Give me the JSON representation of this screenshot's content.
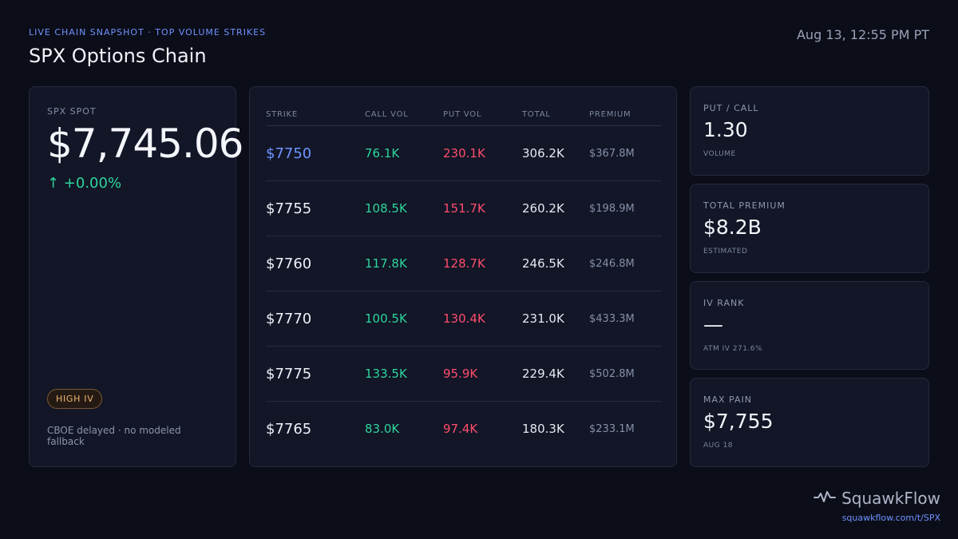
{
  "header": {
    "eyebrow": "LIVE CHAIN SNAPSHOT · TOP VOLUME STRIKES",
    "title": "SPX Options Chain",
    "timestamp": "Aug 13, 12:55 PM PT"
  },
  "spot": {
    "label": "SPX SPOT",
    "value": "$7,745.06",
    "change": "↑ +0.00%",
    "badge": "HIGH IV",
    "source_note": "CBOE delayed · no modeled fallback"
  },
  "chain": {
    "columns": {
      "strike": "STRIKE",
      "call_vol": "CALL VOL",
      "put_vol": "PUT VOL",
      "total": "TOTAL",
      "premium": "PREMIUM"
    },
    "rows": [
      {
        "strike": "$7750",
        "call_vol": "76.1K",
        "put_vol": "230.1K",
        "total": "306.2K",
        "premium": "$367.8M"
      },
      {
        "strike": "$7755",
        "call_vol": "108.5K",
        "put_vol": "151.7K",
        "total": "260.2K",
        "premium": "$198.9M"
      },
      {
        "strike": "$7760",
        "call_vol": "117.8K",
        "put_vol": "128.7K",
        "total": "246.5K",
        "premium": "$246.8M"
      },
      {
        "strike": "$7770",
        "call_vol": "100.5K",
        "put_vol": "130.4K",
        "total": "231.0K",
        "premium": "$433.3M"
      },
      {
        "strike": "$7775",
        "call_vol": "133.5K",
        "put_vol": "95.9K",
        "total": "229.4K",
        "premium": "$502.8M"
      },
      {
        "strike": "$7765",
        "call_vol": "83.0K",
        "put_vol": "97.4K",
        "total": "180.3K",
        "premium": "$233.1M"
      }
    ]
  },
  "metrics": {
    "put_call": {
      "label": "PUT / CALL",
      "value": "1.30",
      "sub": "VOLUME"
    },
    "total_premium": {
      "label": "TOTAL PREMIUM",
      "value": "$8.2B",
      "sub": "ESTIMATED"
    },
    "iv_rank": {
      "label": "IV RANK",
      "value": "—",
      "sub": "ATM IV 271.6%"
    },
    "max_pain": {
      "label": "MAX PAIN",
      "value": "$7,755",
      "sub": "AUG 18"
    }
  },
  "brand": {
    "name": "SquawkFlow",
    "url": "squawkflow.com/t/SPX",
    "icon": "pulse-icon"
  },
  "colors": {
    "accent": "#6f93ff",
    "positive": "#2ed59b",
    "negative": "#ff4d6d",
    "warning": "#f1b46d",
    "background": "#0b0d18",
    "card": "#121627"
  }
}
